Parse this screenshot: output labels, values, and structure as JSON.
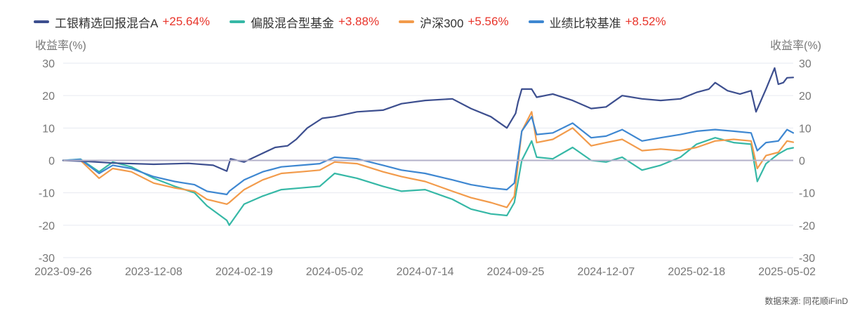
{
  "legend": [
    {
      "name": "工银精选回报混合A",
      "change": "+25.64%",
      "color": "#3d4f8f"
    },
    {
      "name": "偏股混合型基金",
      "change": "+3.88%",
      "color": "#36b8a6"
    },
    {
      "name": "沪深300",
      "change": "+5.56%",
      "color": "#f29b4b"
    },
    {
      "name": "业绩比较基准",
      "change": "+8.52%",
      "color": "#3e87d1"
    }
  ],
  "source_text": "数据来源: 同花顺iFinD",
  "chart_data": {
    "type": "line",
    "ylabel_left": "收益率(%)",
    "ylabel_right": "收益率(%)",
    "ylim": [
      -30,
      30
    ],
    "yticks": [
      -30,
      -20,
      -10,
      0,
      10,
      20,
      30
    ],
    "xlim": [
      "2023-09-26",
      "2025-05-07"
    ],
    "xticks": [
      "2023-09-26",
      "2023-12-08",
      "2024-02-19",
      "2024-05-02",
      "2024-07-14",
      "2024-09-25",
      "2024-12-07",
      "2025-02-18",
      "2025-05-02"
    ],
    "zero_line": true,
    "grid": "horizontal",
    "series": [
      {
        "name": "工银精选回报混合A",
        "color": "#3d4f8f",
        "points": [
          [
            "2023-09-26",
            0.0
          ],
          [
            "2023-10-15",
            -0.3
          ],
          [
            "2023-11-05",
            -0.8
          ],
          [
            "2023-12-08",
            -1.2
          ],
          [
            "2024-01-05",
            -0.9
          ],
          [
            "2024-01-25",
            -1.5
          ],
          [
            "2024-02-05",
            -3.3
          ],
          [
            "2024-02-08",
            0.5
          ],
          [
            "2024-02-19",
            -0.5
          ],
          [
            "2024-03-01",
            1.5
          ],
          [
            "2024-03-15",
            4.0
          ],
          [
            "2024-03-25",
            4.5
          ],
          [
            "2024-04-01",
            6.5
          ],
          [
            "2024-04-10",
            10.0
          ],
          [
            "2024-04-22",
            13.0
          ],
          [
            "2024-05-02",
            13.5
          ],
          [
            "2024-05-20",
            15.0
          ],
          [
            "2024-06-10",
            15.5
          ],
          [
            "2024-06-25",
            17.5
          ],
          [
            "2024-07-14",
            18.5
          ],
          [
            "2024-08-05",
            19.0
          ],
          [
            "2024-08-20",
            16.0
          ],
          [
            "2024-09-05",
            13.5
          ],
          [
            "2024-09-18",
            10.0
          ],
          [
            "2024-09-25",
            14.5
          ],
          [
            "2024-09-27",
            18.0
          ],
          [
            "2024-09-30",
            22.0
          ],
          [
            "2024-10-08",
            22.0
          ],
          [
            "2024-10-12",
            19.5
          ],
          [
            "2024-10-25",
            20.5
          ],
          [
            "2024-11-10",
            18.5
          ],
          [
            "2024-11-25",
            16.0
          ],
          [
            "2024-12-07",
            16.5
          ],
          [
            "2024-12-20",
            20.0
          ],
          [
            "2025-01-05",
            19.0
          ],
          [
            "2025-01-20",
            18.5
          ],
          [
            "2025-02-05",
            19.0
          ],
          [
            "2025-02-18",
            21.0
          ],
          [
            "2025-02-28",
            22.0
          ],
          [
            "2025-03-05",
            24.0
          ],
          [
            "2025-03-15",
            21.5
          ],
          [
            "2025-03-25",
            20.5
          ],
          [
            "2025-04-03",
            21.5
          ],
          [
            "2025-04-07",
            15.0
          ],
          [
            "2025-04-15",
            22.0
          ],
          [
            "2025-04-22",
            28.5
          ],
          [
            "2025-04-25",
            23.5
          ],
          [
            "2025-04-29",
            24.0
          ],
          [
            "2025-05-02",
            25.5
          ],
          [
            "2025-05-07",
            25.6
          ]
        ]
      },
      {
        "name": "偏股混合型基金",
        "color": "#36b8a6",
        "points": [
          [
            "2023-09-26",
            0.0
          ],
          [
            "2023-10-10",
            0.4
          ],
          [
            "2023-10-25",
            -3.5
          ],
          [
            "2023-11-05",
            -0.5
          ],
          [
            "2023-11-20",
            -2.0
          ],
          [
            "2023-12-08",
            -5.5
          ],
          [
            "2023-12-25",
            -8.0
          ],
          [
            "2024-01-10",
            -10.0
          ],
          [
            "2024-01-20",
            -14.0
          ],
          [
            "2024-02-05",
            -18.5
          ],
          [
            "2024-02-07",
            -20.0
          ],
          [
            "2024-02-19",
            -13.5
          ],
          [
            "2024-03-05",
            -11.0
          ],
          [
            "2024-03-20",
            -9.0
          ],
          [
            "2024-04-05",
            -8.5
          ],
          [
            "2024-04-20",
            -8.0
          ],
          [
            "2024-05-02",
            -4.0
          ],
          [
            "2024-05-20",
            -5.5
          ],
          [
            "2024-06-10",
            -8.0
          ],
          [
            "2024-06-25",
            -9.5
          ],
          [
            "2024-07-14",
            -9.0
          ],
          [
            "2024-08-05",
            -12.0
          ],
          [
            "2024-08-20",
            -15.0
          ],
          [
            "2024-09-05",
            -16.5
          ],
          [
            "2024-09-18",
            -17.0
          ],
          [
            "2024-09-24",
            -13.0
          ],
          [
            "2024-09-30",
            0.0
          ],
          [
            "2024-10-08",
            6.0
          ],
          [
            "2024-10-12",
            1.0
          ],
          [
            "2024-10-25",
            0.5
          ],
          [
            "2024-11-10",
            4.0
          ],
          [
            "2024-11-25",
            0.0
          ],
          [
            "2024-12-07",
            -0.5
          ],
          [
            "2024-12-20",
            1.0
          ],
          [
            "2025-01-05",
            -3.0
          ],
          [
            "2025-01-20",
            -1.5
          ],
          [
            "2025-02-05",
            1.0
          ],
          [
            "2025-02-18",
            5.0
          ],
          [
            "2025-03-05",
            7.0
          ],
          [
            "2025-03-20",
            5.5
          ],
          [
            "2025-04-03",
            5.0
          ],
          [
            "2025-04-08",
            -6.5
          ],
          [
            "2025-04-15",
            -1.0
          ],
          [
            "2025-04-25",
            2.0
          ],
          [
            "2025-05-02",
            3.5
          ],
          [
            "2025-05-07",
            3.9
          ]
        ]
      },
      {
        "name": "沪深300",
        "color": "#f29b4b",
        "points": [
          [
            "2023-09-26",
            0.0
          ],
          [
            "2023-10-10",
            0.0
          ],
          [
            "2023-10-25",
            -5.5
          ],
          [
            "2023-11-05",
            -2.5
          ],
          [
            "2023-11-20",
            -3.5
          ],
          [
            "2023-12-08",
            -7.0
          ],
          [
            "2023-12-25",
            -8.5
          ],
          [
            "2024-01-10",
            -9.5
          ],
          [
            "2024-01-20",
            -12.0
          ],
          [
            "2024-02-05",
            -13.5
          ],
          [
            "2024-02-07",
            -13.0
          ],
          [
            "2024-02-19",
            -9.0
          ],
          [
            "2024-03-05",
            -6.0
          ],
          [
            "2024-03-20",
            -4.0
          ],
          [
            "2024-04-05",
            -3.5
          ],
          [
            "2024-04-20",
            -3.0
          ],
          [
            "2024-05-02",
            -0.5
          ],
          [
            "2024-05-20",
            -1.0
          ],
          [
            "2024-06-10",
            -3.5
          ],
          [
            "2024-06-25",
            -5.0
          ],
          [
            "2024-07-14",
            -6.5
          ],
          [
            "2024-08-05",
            -9.5
          ],
          [
            "2024-08-20",
            -11.5
          ],
          [
            "2024-09-05",
            -13.0
          ],
          [
            "2024-09-18",
            -14.5
          ],
          [
            "2024-09-24",
            -11.0
          ],
          [
            "2024-09-30",
            9.0
          ],
          [
            "2024-10-08",
            15.0
          ],
          [
            "2024-10-12",
            5.5
          ],
          [
            "2024-10-25",
            6.5
          ],
          [
            "2024-11-10",
            10.0
          ],
          [
            "2024-11-25",
            4.5
          ],
          [
            "2024-12-07",
            5.5
          ],
          [
            "2024-12-20",
            6.5
          ],
          [
            "2025-01-05",
            3.0
          ],
          [
            "2025-01-20",
            3.5
          ],
          [
            "2025-02-05",
            3.0
          ],
          [
            "2025-02-18",
            4.0
          ],
          [
            "2025-03-05",
            6.0
          ],
          [
            "2025-03-20",
            6.5
          ],
          [
            "2025-04-03",
            6.0
          ],
          [
            "2025-04-08",
            -2.5
          ],
          [
            "2025-04-15",
            1.5
          ],
          [
            "2025-04-25",
            2.5
          ],
          [
            "2025-05-02",
            6.0
          ],
          [
            "2025-05-07",
            5.6
          ]
        ]
      },
      {
        "name": "业绩比较基准",
        "color": "#3e87d1",
        "points": [
          [
            "2023-09-26",
            0.0
          ],
          [
            "2023-10-10",
            0.3
          ],
          [
            "2023-10-25",
            -4.0
          ],
          [
            "2023-11-05",
            -1.5
          ],
          [
            "2023-11-20",
            -2.5
          ],
          [
            "2023-12-08",
            -5.0
          ],
          [
            "2023-12-25",
            -6.5
          ],
          [
            "2024-01-10",
            -7.5
          ],
          [
            "2024-01-20",
            -9.5
          ],
          [
            "2024-02-05",
            -10.5
          ],
          [
            "2024-02-07",
            -9.5
          ],
          [
            "2024-02-19",
            -6.0
          ],
          [
            "2024-03-05",
            -3.5
          ],
          [
            "2024-03-20",
            -2.0
          ],
          [
            "2024-04-05",
            -1.5
          ],
          [
            "2024-04-20",
            -1.0
          ],
          [
            "2024-05-02",
            1.0
          ],
          [
            "2024-05-20",
            0.5
          ],
          [
            "2024-06-10",
            -1.5
          ],
          [
            "2024-06-25",
            -3.0
          ],
          [
            "2024-07-14",
            -4.0
          ],
          [
            "2024-08-05",
            -6.0
          ],
          [
            "2024-08-20",
            -7.5
          ],
          [
            "2024-09-05",
            -8.5
          ],
          [
            "2024-09-18",
            -9.0
          ],
          [
            "2024-09-24",
            -7.0
          ],
          [
            "2024-09-30",
            9.0
          ],
          [
            "2024-10-08",
            13.5
          ],
          [
            "2024-10-12",
            8.0
          ],
          [
            "2024-10-25",
            8.5
          ],
          [
            "2024-11-10",
            11.5
          ],
          [
            "2024-11-25",
            7.0
          ],
          [
            "2024-12-07",
            7.5
          ],
          [
            "2024-12-20",
            9.5
          ],
          [
            "2025-01-05",
            6.0
          ],
          [
            "2025-01-20",
            7.0
          ],
          [
            "2025-02-05",
            8.0
          ],
          [
            "2025-02-18",
            9.0
          ],
          [
            "2025-03-05",
            9.5
          ],
          [
            "2025-03-20",
            9.0
          ],
          [
            "2025-04-03",
            8.5
          ],
          [
            "2025-04-08",
            3.0
          ],
          [
            "2025-04-15",
            5.5
          ],
          [
            "2025-04-25",
            6.0
          ],
          [
            "2025-05-02",
            9.5
          ],
          [
            "2025-05-07",
            8.5
          ]
        ]
      }
    ]
  }
}
